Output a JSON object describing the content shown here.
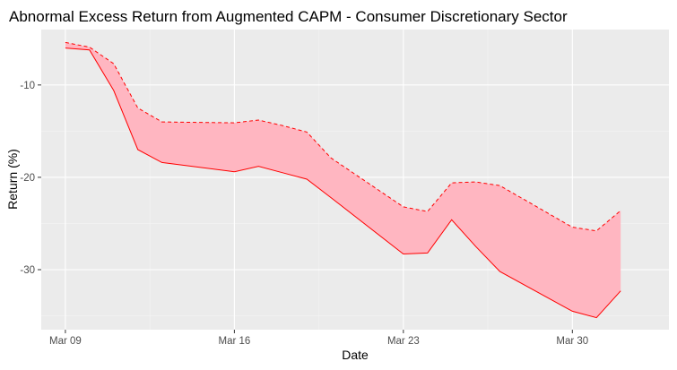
{
  "chart_data": {
    "type": "area",
    "title": "Abnormal Excess Return from Augmented CAPM - Consumer Discretionary Sector",
    "xlabel": "Date",
    "ylabel": "Return (%)",
    "x_ticks": [
      "Mar 09",
      "Mar 16",
      "Mar 23",
      "Mar 30"
    ],
    "y_ticks": [
      -10,
      -20,
      -30
    ],
    "ylim": [
      -36.5,
      -4.0
    ],
    "xlim": [
      "2020-03-08",
      "2020-04-03"
    ],
    "grid": true,
    "legend": "none",
    "dates": [
      "2020-03-09",
      "2020-03-10",
      "2020-03-11",
      "2020-03-12",
      "2020-03-13",
      "2020-03-16",
      "2020-03-17",
      "2020-03-18",
      "2020-03-19",
      "2020-03-20",
      "2020-03-23",
      "2020-03-24",
      "2020-03-25",
      "2020-03-26",
      "2020-03-27",
      "2020-03-30",
      "2020-03-31",
      "2020-04-01"
    ],
    "series": [
      {
        "values": [
          -5.4,
          -5.9,
          -7.7,
          -12.5,
          -14.0,
          -14.1,
          -13.8,
          -14.4,
          -15.1,
          -17.9,
          -23.2,
          -23.7,
          -20.6,
          -20.5,
          -20.9,
          -25.4,
          -25.8,
          -23.6
        ]
      },
      {
        "values": [
          -6.0,
          -6.2,
          -10.6,
          -17.0,
          -18.4,
          -19.4,
          -18.8,
          -19.5,
          -20.2,
          -22.2,
          -28.3,
          -28.2,
          -24.6,
          -27.5,
          -30.2,
          -34.5,
          -35.2,
          -32.3
        ]
      }
    ],
    "colors": {
      "fill": "#ffb6c1",
      "line": "#ff0000",
      "panel": "#ebebeb",
      "grid_major": "#ffffff",
      "grid_minor": "#f5f5f5",
      "tick": "#333333",
      "tick_label": "#4d4d4d"
    }
  }
}
